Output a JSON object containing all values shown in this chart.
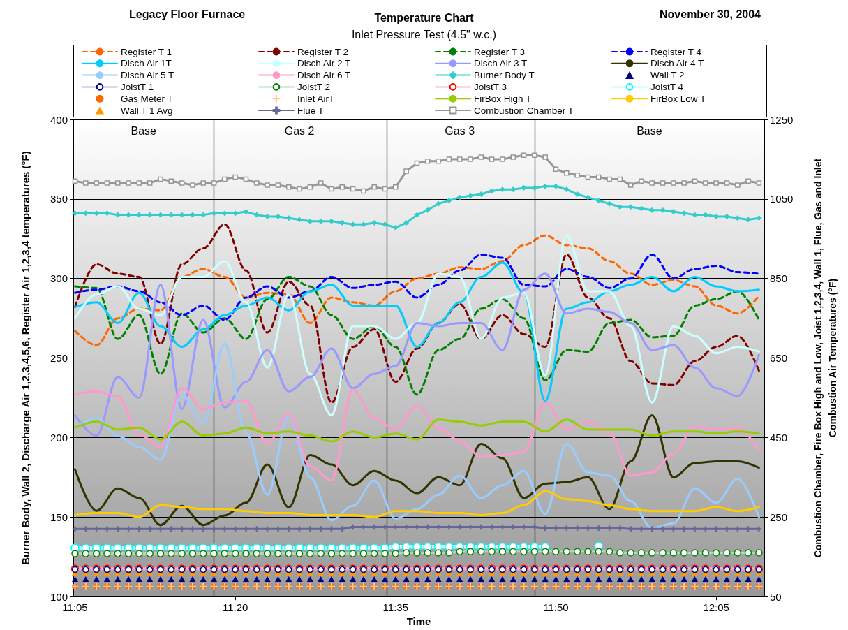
{
  "chart_data": {
    "type": "line",
    "title": "Temperature Chart",
    "subtitle": "Inlet Pressure Test (4.5\" w.c.)",
    "annotations": [
      "Legacy Floor Furnace",
      "November 30, 2004",
      "Base",
      "Gas 2",
      "Gas 3",
      "Base"
    ],
    "xlabel": "Time",
    "ylabel": "Burner Body, Wall 2, Discharge Air 1,2,3,4,5,6, Register Air 1,2,3,4 temperatures (°F)",
    "y2label": "Combustion Chamber, Fire Box High and Low, Joist 1,2,3,4, Wall 1, Flue, Gas and Inlet Combustion Air Temperatures (°F)",
    "xlim": [
      11.0806,
      12.1583
    ],
    "xticks": [
      {
        "value": 11.0833,
        "label": "11:05"
      },
      {
        "value": 11.3333,
        "label": "11:20"
      },
      {
        "value": 11.5833,
        "label": "11:35"
      },
      {
        "value": 11.8333,
        "label": "11:50"
      },
      {
        "value": 12.0833,
        "label": "12:05"
      }
    ],
    "ylim": [
      100,
      400
    ],
    "yticks": [
      100,
      150,
      200,
      250,
      300,
      350,
      400
    ],
    "y2lim": [
      50,
      1250
    ],
    "y2ticks": [
      50,
      250,
      450,
      650,
      850,
      1050,
      1250
    ],
    "grid": "y",
    "legend": "top",
    "ref_lines": [
      {
        "axis": "x",
        "value": 11.3,
        "color": "#000000"
      },
      {
        "axis": "x",
        "value": 11.5667,
        "color": "#000000"
      },
      {
        "axis": "x",
        "value": 11.8,
        "color": "#000000"
      }
    ],
    "x": [
      11.0833,
      11.1,
      11.1167,
      11.1333,
      11.15,
      11.1667,
      11.1833,
      11.2,
      11.2167,
      11.2333,
      11.25,
      11.2667,
      11.2833,
      11.3,
      11.3167,
      11.3333,
      11.35,
      11.3667,
      11.3833,
      11.4,
      11.4167,
      11.4333,
      11.45,
      11.4667,
      11.4833,
      11.5,
      11.5167,
      11.5333,
      11.55,
      11.5667,
      11.5833,
      11.6,
      11.6167,
      11.6333,
      11.65,
      11.6667,
      11.6833,
      11.7,
      11.7167,
      11.7333,
      11.75,
      11.7667,
      11.7833,
      11.8,
      11.8167,
      11.8333,
      11.85,
      11.8667,
      11.8833,
      11.9,
      11.9167,
      11.9333,
      11.95,
      11.9667,
      11.9833,
      12.0,
      12.0167,
      12.0333,
      12.05,
      12.0667,
      12.0833,
      12.1,
      12.1167,
      12.1333,
      12.15
    ],
    "series": [
      {
        "name": "Register T 1",
        "color": "#ff6600",
        "line_style": "dashed",
        "x": [
          11.0833,
          11.1167,
          11.15,
          11.1833,
          11.2167,
          11.25,
          11.2833,
          11.3167,
          11.35,
          11.3833,
          11.4167,
          11.45,
          11.4833,
          11.5167,
          11.55,
          11.5833,
          11.6167,
          11.65,
          11.6833,
          11.7167,
          11.75,
          11.7833,
          11.8167,
          11.85,
          11.8833,
          11.9167,
          11.95,
          11.9833,
          12.0167,
          12.05,
          12.0833,
          12.1167,
          12.15
        ],
        "values": [
          267,
          258,
          275,
          281,
          280,
          301,
          306,
          301,
          288,
          291,
          290,
          272,
          288,
          285,
          283,
          292,
          300,
          303,
          307,
          306,
          311,
          321,
          327,
          321,
          319,
          311,
          303,
          296,
          299,
          295,
          283,
          278,
          289
        ]
      },
      {
        "name": "Register T 2",
        "color": "#800000",
        "line_style": "dashed",
        "x": [
          11.0833,
          11.1167,
          11.15,
          11.1833,
          11.2167,
          11.25,
          11.2833,
          11.3167,
          11.35,
          11.3833,
          11.4167,
          11.45,
          11.4833,
          11.5167,
          11.55,
          11.5833,
          11.6167,
          11.65,
          11.6833,
          11.7167,
          11.75,
          11.7833,
          11.8167,
          11.85,
          11.8833,
          11.9167,
          11.95,
          11.9833,
          12.0167,
          12.05,
          12.0833,
          12.1167,
          12.15
        ],
        "values": [
          282,
          309,
          303,
          301,
          259,
          309,
          319,
          334,
          305,
          266,
          298,
          283,
          222,
          257,
          268,
          235,
          256,
          272,
          284,
          262,
          277,
          265,
          257,
          315,
          288,
          275,
          248,
          234,
          233,
          248,
          257,
          264,
          242
        ]
      },
      {
        "name": "Register T 3",
        "color": "#008000",
        "line_style": "dashed",
        "x": [
          11.0833,
          11.1167,
          11.15,
          11.1833,
          11.2167,
          11.25,
          11.2833,
          11.3167,
          11.35,
          11.3833,
          11.4167,
          11.45,
          11.4833,
          11.5167,
          11.55,
          11.5833,
          11.6167,
          11.65,
          11.6833,
          11.7167,
          11.75,
          11.7833,
          11.8167,
          11.85,
          11.8833,
          11.9167,
          11.95,
          11.9833,
          12.0167,
          12.05,
          12.0833,
          12.1167,
          12.15
        ],
        "values": [
          295,
          294,
          262,
          277,
          240,
          278,
          266,
          275,
          262,
          287,
          301,
          295,
          277,
          262,
          270,
          257,
          227,
          255,
          262,
          281,
          287,
          275,
          236,
          255,
          254,
          272,
          274,
          263,
          264,
          283,
          287,
          292,
          274
        ]
      },
      {
        "name": "Register T 4",
        "color": "#0000ff",
        "line_style": "dashed",
        "x": [
          11.0833,
          11.1167,
          11.15,
          11.1833,
          11.2167,
          11.25,
          11.2833,
          11.3167,
          11.35,
          11.3833,
          11.4167,
          11.45,
          11.4833,
          11.5167,
          11.55,
          11.5833,
          11.6167,
          11.65,
          11.6833,
          11.7167,
          11.75,
          11.7833,
          11.8167,
          11.85,
          11.8833,
          11.9167,
          11.95,
          11.9833,
          12.0167,
          12.05,
          12.0833,
          12.1167,
          12.15
        ],
        "values": [
          291,
          293,
          295,
          292,
          285,
          277,
          283,
          274,
          288,
          295,
          288,
          292,
          301,
          294,
          296,
          298,
          288,
          296,
          305,
          315,
          313,
          296,
          295,
          306,
          301,
          294,
          300,
          315,
          300,
          306,
          308,
          304,
          303
        ]
      },
      {
        "name": "Disch Air 1T",
        "color": "#00ccff",
        "line_style": "solid",
        "x": [
          11.0833,
          11.1167,
          11.15,
          11.1833,
          11.2167,
          11.25,
          11.2833,
          11.3167,
          11.35,
          11.3833,
          11.4167,
          11.45,
          11.4833,
          11.5167,
          11.55,
          11.5833,
          11.6167,
          11.65,
          11.6833,
          11.7167,
          11.75,
          11.7833,
          11.8167,
          11.85,
          11.8833,
          11.9167,
          11.95,
          11.9833,
          12.0167,
          12.05,
          12.0833,
          12.1167,
          12.15
        ],
        "values": [
          282,
          285,
          272,
          291,
          270,
          257,
          268,
          277,
          283,
          288,
          280,
          292,
          296,
          283,
          283,
          283,
          257,
          272,
          285,
          301,
          310,
          291,
          223,
          281,
          285,
          292,
          296,
          301,
          292,
          301,
          295,
          292,
          293
        ]
      },
      {
        "name": "Disch Air 2 T",
        "color": "#ccffff",
        "line_style": "solid",
        "x": [
          11.0833,
          11.1167,
          11.15,
          11.1833,
          11.2167,
          11.25,
          11.2833,
          11.3167,
          11.35,
          11.3833,
          11.4167,
          11.45,
          11.4833,
          11.5167,
          11.55,
          11.5833,
          11.6167,
          11.65,
          11.6833,
          11.7167,
          11.75,
          11.7833,
          11.8167,
          11.85,
          11.8833,
          11.9167,
          11.95,
          11.9833,
          12.0167,
          12.05,
          12.0833,
          12.1167,
          12.15
        ],
        "values": [
          275,
          290,
          295,
          281,
          277,
          301,
          301,
          311,
          285,
          244,
          290,
          240,
          214,
          270,
          270,
          262,
          272,
          303,
          301,
          262,
          288,
          291,
          239,
          327,
          292,
          292,
          270,
          222,
          270,
          264,
          253,
          257,
          254
        ]
      },
      {
        "name": "Disch Air 3 T",
        "color": "#9999ff",
        "line_style": "solid",
        "x": [
          11.0833,
          11.1167,
          11.15,
          11.1833,
          11.2167,
          11.25,
          11.2833,
          11.3167,
          11.35,
          11.3833,
          11.4167,
          11.45,
          11.4833,
          11.5167,
          11.55,
          11.5833,
          11.6167,
          11.65,
          11.6833,
          11.7167,
          11.75,
          11.7833,
          11.8167,
          11.85,
          11.8833,
          11.9167,
          11.95,
          11.9833,
          12.0167,
          12.05,
          12.0833,
          12.1167,
          12.15
        ],
        "values": [
          214,
          201,
          238,
          225,
          296,
          218,
          274,
          219,
          235,
          255,
          229,
          238,
          256,
          231,
          240,
          245,
          272,
          270,
          272,
          272,
          255,
          293,
          303,
          278,
          281,
          279,
          272,
          255,
          258,
          244,
          231,
          226,
          252
        ]
      },
      {
        "name": "Disch Air 4 T",
        "color": "#333300",
        "line_style": "solid",
        "x": [
          11.0833,
          11.1167,
          11.15,
          11.1833,
          11.2167,
          11.25,
          11.2833,
          11.3167,
          11.35,
          11.3833,
          11.4167,
          11.45,
          11.4833,
          11.5167,
          11.55,
          11.5833,
          11.6167,
          11.65,
          11.6833,
          11.7167,
          11.75,
          11.7833,
          11.8167,
          11.85,
          11.8833,
          11.9167,
          11.95,
          11.9833,
          12.0167,
          12.05,
          12.0833,
          12.1167,
          12.15
        ],
        "values": [
          180,
          154,
          168,
          162,
          145,
          157,
          145,
          151,
          159,
          183,
          156,
          189,
          183,
          170,
          179,
          173,
          165,
          175,
          170,
          196,
          187,
          162,
          171,
          172,
          175,
          155,
          185,
          214,
          175,
          184,
          185,
          185,
          181
        ]
      },
      {
        "name": "Disch Air 5 T",
        "color": "#99ccff",
        "line_style": "solid",
        "x": [
          11.0833,
          11.1167,
          11.15,
          11.1833,
          11.2167,
          11.25,
          11.2833,
          11.3167,
          11.35,
          11.3833,
          11.4167,
          11.45,
          11.4833,
          11.5167,
          11.55,
          11.5833,
          11.6167,
          11.65,
          11.6833,
          11.7167,
          11.75,
          11.7833,
          11.8167,
          11.85,
          11.8833,
          11.9167,
          11.95,
          11.9833,
          12.0167,
          12.05,
          12.0833,
          12.1167,
          12.15
        ],
        "values": [
          206,
          212,
          201,
          194,
          186,
          227,
          209,
          259,
          203,
          164,
          214,
          175,
          148,
          157,
          173,
          149,
          155,
          164,
          176,
          162,
          170,
          179,
          152,
          196,
          178,
          176,
          160,
          143,
          146,
          168,
          159,
          174,
          150
        ]
      },
      {
        "name": "Disch Air 6 T",
        "color": "#ff99cc",
        "line_style": "solid",
        "x": [
          11.0833,
          11.1167,
          11.15,
          11.1833,
          11.2167,
          11.25,
          11.2833,
          11.3167,
          11.35,
          11.3833,
          11.4167,
          11.45,
          11.4833,
          11.5167,
          11.55,
          11.5833,
          11.6167,
          11.65,
          11.6833,
          11.7167,
          11.75,
          11.7833,
          11.8167,
          11.85,
          11.8833,
          11.9167,
          11.95,
          11.9833,
          12.0167,
          12.05,
          12.0833,
          12.1167,
          12.15
        ],
        "values": [
          227,
          229,
          226,
          202,
          194,
          231,
          218,
          222,
          223,
          196,
          215,
          182,
          173,
          230,
          212,
          205,
          220,
          206,
          198,
          188,
          189,
          191,
          222,
          205,
          210,
          203,
          176,
          178,
          190,
          207,
          205,
          206,
          192
        ]
      },
      {
        "name": "Burner Body T",
        "color": "#33cccc",
        "marker": "diamond",
        "line_style": "solid",
        "values": [
          341,
          341,
          341,
          341,
          340,
          340,
          340,
          340,
          340,
          340,
          340,
          340,
          340,
          341,
          341,
          341,
          342,
          340,
          339,
          339,
          338,
          337,
          336,
          336,
          336,
          335,
          334,
          334,
          335,
          334,
          332,
          335,
          340,
          343,
          347,
          349,
          351,
          352,
          353,
          355,
          356,
          356,
          357,
          357,
          358,
          358,
          356,
          353,
          351,
          349,
          347,
          345,
          345,
          344,
          343,
          343,
          342,
          341,
          340,
          340,
          339,
          339,
          338,
          337,
          338
        ]
      },
      {
        "name": "Wall T 2",
        "type": "scatter",
        "color": "#000080",
        "marker": "triangle",
        "values": [
          111,
          111,
          111,
          111,
          111,
          111,
          111,
          111,
          111,
          111,
          111,
          111,
          111,
          111,
          111,
          111,
          111,
          111,
          111,
          111,
          111,
          111,
          111,
          111,
          111,
          111,
          111,
          111,
          111,
          111,
          111,
          111,
          111,
          111,
          111,
          111,
          111,
          111,
          111,
          111,
          111,
          111,
          111,
          111,
          111,
          111,
          111,
          111,
          111,
          111,
          111,
          111,
          111,
          111,
          111,
          111,
          111,
          111,
          111,
          111,
          111,
          111,
          111,
          111,
          111
        ]
      },
      {
        "name": "JoistT 1",
        "color": "#000080",
        "marker": "circle",
        "line_style": "solid",
        "axis": "y2",
        "values": [
          118,
          118,
          118,
          118,
          118,
          118,
          118,
          118,
          118,
          118,
          118,
          118,
          118,
          118,
          118,
          118,
          118,
          118,
          118,
          118,
          118,
          118,
          118,
          118,
          118,
          118,
          118,
          118,
          118,
          118,
          118,
          118,
          118,
          118,
          118,
          118,
          118,
          118,
          118,
          118,
          118,
          118,
          118,
          118,
          118,
          118,
          118,
          118,
          118,
          118,
          118,
          118,
          118,
          118,
          118,
          118,
          118,
          118,
          118,
          118,
          118,
          118,
          118,
          118,
          118
        ]
      },
      {
        "name": "JoistT 2",
        "color": "#008000",
        "marker": "circle",
        "line_style": "solid",
        "axis": "y2",
        "values": [
          158,
          158,
          158,
          158,
          158,
          158,
          158,
          158,
          158,
          158,
          158,
          158,
          158,
          158,
          158,
          158,
          158,
          158,
          158,
          158,
          158,
          158,
          158,
          158,
          158,
          158,
          158,
          158,
          158,
          158,
          158,
          160,
          160,
          160,
          160,
          160,
          163,
          163,
          163,
          163,
          163,
          163,
          163,
          163,
          163,
          163,
          163,
          163,
          163,
          163,
          163,
          160,
          160,
          160,
          160,
          160,
          160,
          160,
          160,
          160,
          160,
          160,
          160,
          160,
          160
        ]
      },
      {
        "name": "JoistT 3",
        "color": "#ff0000",
        "marker": "circle",
        "line_style": "solid",
        "axis": "y2",
        "values": [
          120,
          120,
          120,
          120,
          120,
          120,
          120,
          120,
          120,
          120,
          120,
          120,
          120,
          120,
          120,
          120,
          120,
          120,
          120,
          120,
          120,
          120,
          120,
          120,
          120,
          120,
          120,
          120,
          120,
          120,
          120,
          120,
          120,
          120,
          120,
          120,
          120,
          120,
          120,
          120,
          120,
          120,
          120,
          120,
          120,
          120,
          120,
          120,
          120,
          120,
          120,
          120,
          120,
          120,
          120,
          120,
          120,
          120,
          120,
          120,
          120,
          120,
          120,
          120,
          120
        ]
      },
      {
        "name": "JoistT 4",
        "color": "#00ffff",
        "marker": "circle",
        "line_style": "solid",
        "axis": "y2",
        "values": [
          172,
          172,
          172,
          172,
          172,
          172,
          172,
          172,
          172,
          172,
          172,
          172,
          172,
          172,
          172,
          172,
          172,
          172,
          172,
          172,
          172,
          172,
          172,
          172,
          172,
          172,
          172,
          172,
          172,
          172,
          175,
          175,
          175,
          175,
          175,
          175,
          175,
          175,
          175,
          175,
          175,
          175,
          175,
          175,
          175,
          null,
          null,
          null,
          null,
          177,
          null,
          null,
          null,
          null,
          null,
          null,
          null,
          null,
          null,
          null,
          null,
          null,
          null,
          null,
          null
        ]
      },
      {
        "name": "Gas Meter T",
        "type": "scatter",
        "color": "#ff6600",
        "marker": "circle",
        "axis": "y2",
        "values": [
          75,
          75,
          75,
          75,
          75,
          75,
          75,
          75,
          75,
          75,
          75,
          75,
          75,
          75,
          75,
          75,
          75,
          75,
          75,
          75,
          75,
          75,
          75,
          75,
          75,
          75,
          75,
          75,
          75,
          75,
          75,
          75,
          75,
          75,
          75,
          75,
          75,
          75,
          75,
          75,
          75,
          75,
          75,
          75,
          75,
          75,
          75,
          75,
          75,
          75,
          75,
          75,
          75,
          75,
          75,
          75,
          75,
          75,
          75,
          75,
          75,
          75,
          75,
          75,
          75
        ]
      },
      {
        "name": "Inlet AirT",
        "type": "scatter",
        "color": "#ffcc99",
        "marker": "cross",
        "axis": "y2",
        "values": [
          75,
          75,
          75,
          75,
          75,
          75,
          75,
          75,
          75,
          75,
          75,
          75,
          75,
          75,
          75,
          75,
          75,
          75,
          75,
          75,
          75,
          75,
          75,
          75,
          75,
          75,
          75,
          75,
          75,
          75,
          75,
          75,
          75,
          75,
          75,
          75,
          75,
          75,
          75,
          75,
          75,
          75,
          75,
          75,
          75,
          75,
          75,
          75,
          75,
          75,
          75,
          75,
          75,
          75,
          75,
          75,
          75,
          75,
          75,
          75,
          75,
          75,
          75,
          75,
          75
        ]
      },
      {
        "name": "FirBox High T",
        "color": "#99cc00",
        "line_style": "solid",
        "axis": "y2",
        "x": [
          11.0833,
          11.1167,
          11.15,
          11.1833,
          11.2167,
          11.25,
          11.2833,
          11.3167,
          11.35,
          11.3833,
          11.4167,
          11.45,
          11.4833,
          11.5167,
          11.55,
          11.5833,
          11.6167,
          11.65,
          11.6833,
          11.7167,
          11.75,
          11.7833,
          11.8167,
          11.85,
          11.8833,
          11.9167,
          11.95,
          11.9833,
          12.0167,
          12.05,
          12.0833,
          12.1167,
          12.15
        ],
        "values": [
          475,
          490,
          470,
          475,
          445,
          490,
          455,
          460,
          475,
          460,
          465,
          455,
          440,
          465,
          450,
          460,
          445,
          495,
          490,
          480,
          490,
          490,
          465,
          495,
          470,
          470,
          470,
          455,
          465,
          465,
          460,
          465,
          460
        ]
      },
      {
        "name": "FirBox Low T",
        "color": "#ffcc00",
        "line_style": "solid",
        "axis": "y2",
        "x": [
          11.0833,
          11.1167,
          11.15,
          11.1833,
          11.2167,
          11.25,
          11.2833,
          11.3167,
          11.35,
          11.3833,
          11.4167,
          11.45,
          11.4833,
          11.5167,
          11.55,
          11.5833,
          11.6167,
          11.65,
          11.6833,
          11.7167,
          11.75,
          11.7833,
          11.8167,
          11.85,
          11.8833,
          11.9167,
          11.95,
          11.9833,
          12.0167,
          12.05,
          12.0833,
          12.1167,
          12.15
        ],
        "values": [
          255,
          260,
          260,
          250,
          280,
          275,
          270,
          270,
          265,
          260,
          260,
          255,
          255,
          255,
          250,
          265,
          265,
          260,
          260,
          255,
          260,
          280,
          315,
          295,
          290,
          280,
          270,
          265,
          265,
          265,
          275,
          265,
          275
        ]
      },
      {
        "name": "Wall T 1 Avg",
        "type": "scatter",
        "color": "#ff9900",
        "marker": "triangle",
        "axis": "y2",
        "values": [
          110,
          110,
          110,
          110,
          110,
          110,
          110,
          110,
          110,
          110,
          110,
          110,
          110,
          110,
          110,
          110,
          110,
          110,
          110,
          110,
          110,
          110,
          110,
          110,
          110,
          110,
          110,
          110,
          110,
          110,
          110,
          110,
          110,
          110,
          110,
          110,
          110,
          110,
          110,
          110,
          110,
          110,
          110,
          110,
          110,
          110,
          110,
          110,
          110,
          110,
          110,
          110,
          110,
          110,
          110,
          110,
          110,
          110,
          110,
          110,
          110,
          110,
          110,
          110,
          110
        ]
      },
      {
        "name": "Flue T",
        "color": "#666699",
        "marker": "cross",
        "line_style": "solid",
        "axis": "y2",
        "values": [
          220,
          220,
          220,
          220,
          220,
          220,
          220,
          220,
          220,
          220,
          220,
          220,
          220,
          220,
          220,
          220,
          220,
          220,
          220,
          220,
          220,
          220,
          220,
          220,
          220,
          220,
          225,
          225,
          225,
          225,
          225,
          225,
          225,
          225,
          225,
          225,
          225,
          225,
          225,
          225,
          225,
          225,
          225,
          225,
          222,
          222,
          222,
          222,
          222,
          222,
          222,
          222,
          220,
          220,
          220,
          220,
          220,
          220,
          220,
          220,
          220,
          220,
          220,
          220,
          220
        ]
      },
      {
        "name": "Combustion Chamber T",
        "color": "#969696",
        "marker": "square",
        "line_style": "solid",
        "axis": "y2",
        "values": [
          1095,
          1090,
          1090,
          1090,
          1090,
          1090,
          1090,
          1090,
          1100,
          1095,
          1090,
          1085,
          1090,
          1090,
          1100,
          1105,
          1100,
          1090,
          1085,
          1085,
          1080,
          1075,
          1080,
          1090,
          1075,
          1080,
          1075,
          1070,
          1080,
          1075,
          1080,
          1120,
          1140,
          1145,
          1145,
          1150,
          1150,
          1150,
          1155,
          1150,
          1150,
          1155,
          1160,
          1160,
          1155,
          1125,
          1115,
          1110,
          1105,
          1105,
          1100,
          1100,
          1085,
          1095,
          1090,
          1090,
          1090,
          1090,
          1095,
          1090,
          1090,
          1090,
          1085,
          1095,
          1090
        ]
      }
    ]
  }
}
